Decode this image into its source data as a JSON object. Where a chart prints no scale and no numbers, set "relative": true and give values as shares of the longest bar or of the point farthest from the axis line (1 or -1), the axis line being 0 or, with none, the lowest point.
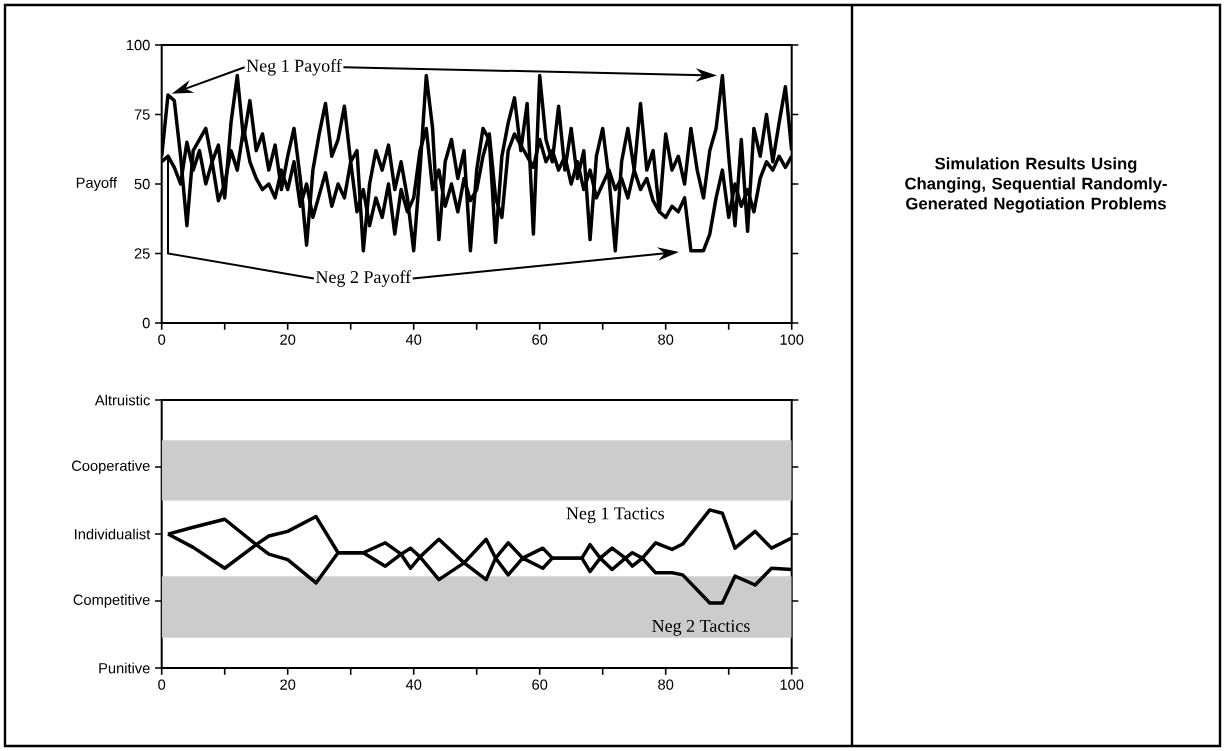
{
  "chart_data": [
    {
      "type": "line",
      "ylabel": "Payoff",
      "x": [
        0,
        1,
        2,
        3,
        4,
        5,
        6,
        7,
        8,
        9,
        10,
        11,
        12,
        13,
        14,
        15,
        16,
        17,
        18,
        19,
        20,
        21,
        22,
        23,
        24,
        25,
        26,
        27,
        28,
        29,
        30,
        31,
        32,
        33,
        34,
        35,
        36,
        37,
        38,
        39,
        40,
        41,
        42,
        43,
        44,
        45,
        46,
        47,
        48,
        49,
        50,
        51,
        52,
        53,
        54,
        55,
        56,
        57,
        58,
        59,
        60,
        61,
        62,
        63,
        64,
        65,
        66,
        67,
        68,
        69,
        70,
        71,
        72,
        73,
        74,
        75,
        76,
        77,
        78,
        79,
        80,
        81,
        82,
        83,
        84,
        85,
        86,
        87,
        88,
        89,
        90,
        91,
        92,
        93,
        94,
        95,
        96,
        97,
        98,
        99,
        100
      ],
      "series": [
        {
          "name": "Neg 1 Payoff",
          "color": "#000000",
          "values": [
            60,
            82,
            80,
            60,
            35,
            62,
            66,
            70,
            58,
            64,
            45,
            72,
            89,
            66,
            80,
            62,
            68,
            55,
            64,
            48,
            60,
            70,
            52,
            28,
            55,
            68,
            79,
            60,
            66,
            78,
            58,
            62,
            26,
            50,
            62,
            55,
            64,
            48,
            58,
            45,
            26,
            55,
            89,
            70,
            30,
            58,
            66,
            52,
            62,
            26,
            55,
            70,
            66,
            29,
            60,
            72,
            81,
            62,
            79,
            32,
            89,
            66,
            58,
            78,
            55,
            70,
            52,
            62,
            30,
            60,
            70,
            52,
            26,
            58,
            70,
            55,
            79,
            55,
            62,
            40,
            68,
            55,
            60,
            50,
            70,
            55,
            45,
            62,
            70,
            89,
            60,
            35,
            66,
            33,
            70,
            60,
            75,
            58,
            72,
            85,
            62
          ]
        },
        {
          "name": "Neg 2 Payoff",
          "color": "#000000",
          "values": [
            58,
            60,
            56,
            50,
            65,
            55,
            62,
            50,
            58,
            44,
            50,
            62,
            55,
            70,
            58,
            52,
            48,
            50,
            45,
            55,
            48,
            58,
            42,
            50,
            38,
            46,
            54,
            42,
            50,
            45,
            58,
            40,
            48,
            35,
            45,
            38,
            50,
            32,
            48,
            40,
            45,
            62,
            70,
            48,
            55,
            42,
            50,
            40,
            52,
            44,
            48,
            60,
            68,
            45,
            38,
            62,
            68,
            64,
            60,
            56,
            66,
            58,
            62,
            55,
            60,
            50,
            58,
            48,
            55,
            45,
            50,
            55,
            48,
            52,
            45,
            55,
            48,
            52,
            44,
            40,
            38,
            42,
            40,
            45,
            26,
            26,
            26,
            32,
            45,
            55,
            38,
            50,
            42,
            48,
            40,
            52,
            58,
            55,
            60,
            56,
            60
          ]
        }
      ],
      "xlim": [
        0,
        100
      ],
      "ylim": [
        0,
        100
      ],
      "xticks": [
        0,
        {
          "value": 10,
          "label": null
        },
        20,
        {
          "value": 30,
          "label": null
        },
        40,
        {
          "value": 50,
          "label": null
        },
        60,
        {
          "value": 70,
          "label": null
        },
        80,
        {
          "value": 90,
          "label": null
        },
        100
      ],
      "yticks": [
        0,
        25,
        50,
        75,
        100
      ]
    },
    {
      "type": "line",
      "x": [
        1,
        5,
        10,
        15,
        17,
        20,
        24.5,
        28,
        32,
        35.5,
        38,
        39.5,
        41,
        44,
        48,
        51.5,
        53,
        55,
        57.3,
        60.5,
        62,
        66.7,
        68,
        69.6,
        71.5,
        73.6,
        74.7,
        76.3,
        78.4,
        81,
        82.7,
        87,
        89,
        91,
        94.2,
        96.8,
        100
      ],
      "series": [
        {
          "name": "Neg 1 Tactics",
          "color": "#000000",
          "values": [
            0.847,
            0.89,
            0.941,
            0.78,
            0.835,
            0.864,
            0.958,
            0.729,
            0.729,
            0.792,
            0.72,
            0.758,
            0.703,
            0.814,
            0.665,
            0.814,
            0.695,
            0.792,
            0.695,
            0.758,
            0.695,
            0.695,
            0.78,
            0.695,
            0.758,
            0.695,
            0.729,
            0.695,
            0.792,
            0.75,
            0.784,
            1,
            0.979,
            0.758,
            0.864,
            0.758,
            0.822
          ]
        },
        {
          "name": "Neg 2 Tactics",
          "color": "#000000",
          "values": [
            0.847,
            0.763,
            0.631,
            0.78,
            0.72,
            0.686,
            0.538,
            0.729,
            0.729,
            0.644,
            0.72,
            0.631,
            0.703,
            0.559,
            0.665,
            0.559,
            0.695,
            0.589,
            0.695,
            0.631,
            0.695,
            0.695,
            0.61,
            0.695,
            0.623,
            0.695,
            0.644,
            0.695,
            0.602,
            0.602,
            0.589,
            0.411,
            0.411,
            0.581,
            0.525,
            0.631,
            0.623
          ]
        }
      ],
      "relative": true,
      "xlim": [
        0,
        100
      ],
      "xticks": [
        0,
        {
          "value": 10,
          "label": null
        },
        20,
        {
          "value": 30,
          "label": null
        },
        40,
        {
          "value": 50,
          "label": null
        },
        60,
        {
          "value": 70,
          "label": null
        },
        80,
        {
          "value": 90,
          "label": null
        },
        100
      ],
      "annotations": [
        "Punitive",
        "Competitive",
        "Individualist",
        "Cooperative",
        "Altruistic"
      ],
      "bands": [
        {
          "axis": "y",
          "from": 1.059,
          "to": 1.441,
          "color": "#cccccc"
        },
        {
          "axis": "y",
          "from": 0.191,
          "to": 0.581,
          "color": "#cccccc"
        }
      ]
    },
    {
      "type": "other",
      "title": "Simulation Results Using Changing, Sequential Randomly-Generated Negotiation Problems"
    }
  ]
}
